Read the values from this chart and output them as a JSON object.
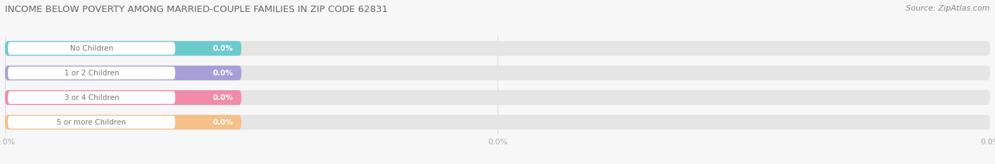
{
  "title": "INCOME BELOW POVERTY AMONG MARRIED-COUPLE FAMILIES IN ZIP CODE 62831",
  "source": "Source: ZipAtlas.com",
  "categories": [
    "No Children",
    "1 or 2 Children",
    "3 or 4 Children",
    "5 or more Children"
  ],
  "values": [
    0.0,
    0.0,
    0.0,
    0.0
  ],
  "bar_colors": [
    "#6dcacc",
    "#a89fd8",
    "#f08caa",
    "#f5c08a"
  ],
  "bg_color": "#f7f7f7",
  "bar_bg_color": "#e5e5e5",
  "label_bg_color": "#ffffff",
  "label_text_color": "#777777",
  "value_text_color": "#ffffff",
  "title_color": "#666666",
  "source_color": "#888888",
  "tick_color": "#aaaaaa",
  "grid_color": "#dddddd",
  "figure_width": 14.06,
  "figure_height": 2.33,
  "dpi": 100
}
